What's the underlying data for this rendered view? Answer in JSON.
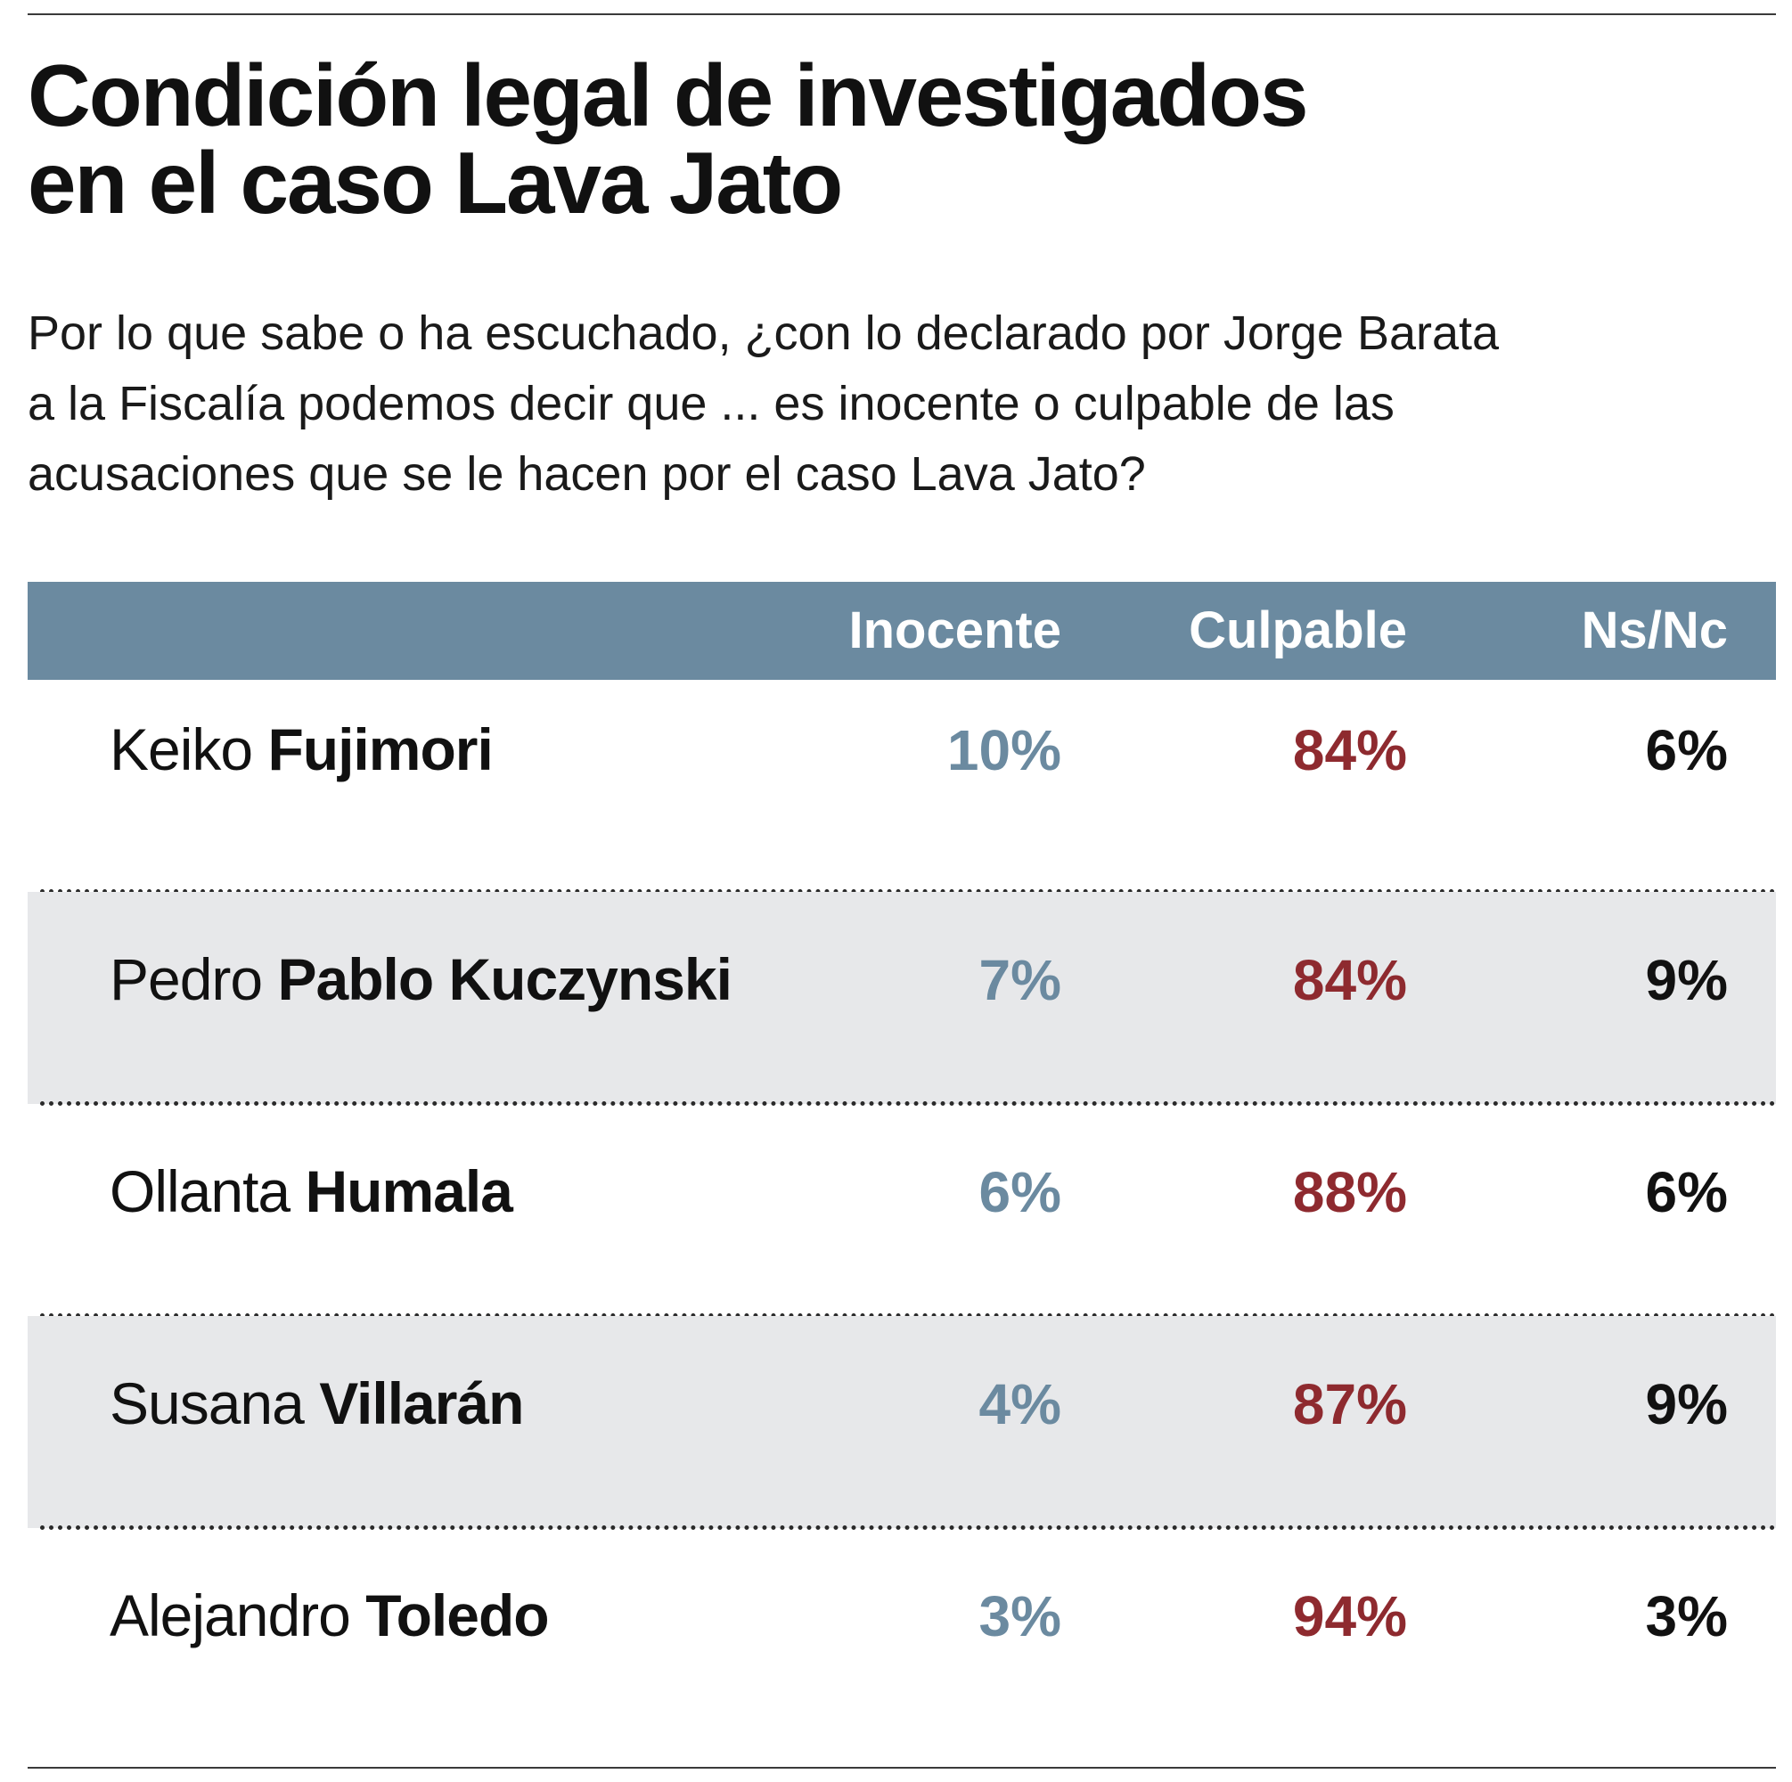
{
  "title_line1": "Condición legal de investigados",
  "title_line2": "en el caso Lava Jato",
  "subtitle_line1": "Por lo que sabe o ha escuchado, ¿con lo declarado por Jorge Barata",
  "subtitle_line2": "a la Fiscalía podemos decir que ... es inocente o culpable de las",
  "subtitle_line3": "acusaciones que se le hacen por el caso Lava Jato?",
  "colors": {
    "header_bg": "#6b8aa0",
    "inocente": "#6b8aa0",
    "culpable": "#8e2a2f",
    "nsnc": "#111111",
    "shade": "#e7e8ea"
  },
  "chart_data": {
    "type": "table",
    "columns": [
      "Inocente",
      "Culpable",
      "Ns/Nc"
    ],
    "rows": [
      {
        "first": "Keiko",
        "last": "Fujimori",
        "values": [
          "10%",
          "84%",
          "6%"
        ]
      },
      {
        "first": "Pedro",
        "last": "Pablo Kuczynski",
        "values": [
          "7%",
          "84%",
          "9%"
        ]
      },
      {
        "first": "Ollanta",
        "last": "Humala",
        "values": [
          "6%",
          "88%",
          "6%"
        ]
      },
      {
        "first": "Susana",
        "last": "Villarán",
        "values": [
          "4%",
          "87%",
          "9%"
        ]
      },
      {
        "first": "Alejandro",
        "last": "Toledo",
        "values": [
          "3%",
          "94%",
          "3%"
        ]
      }
    ]
  }
}
